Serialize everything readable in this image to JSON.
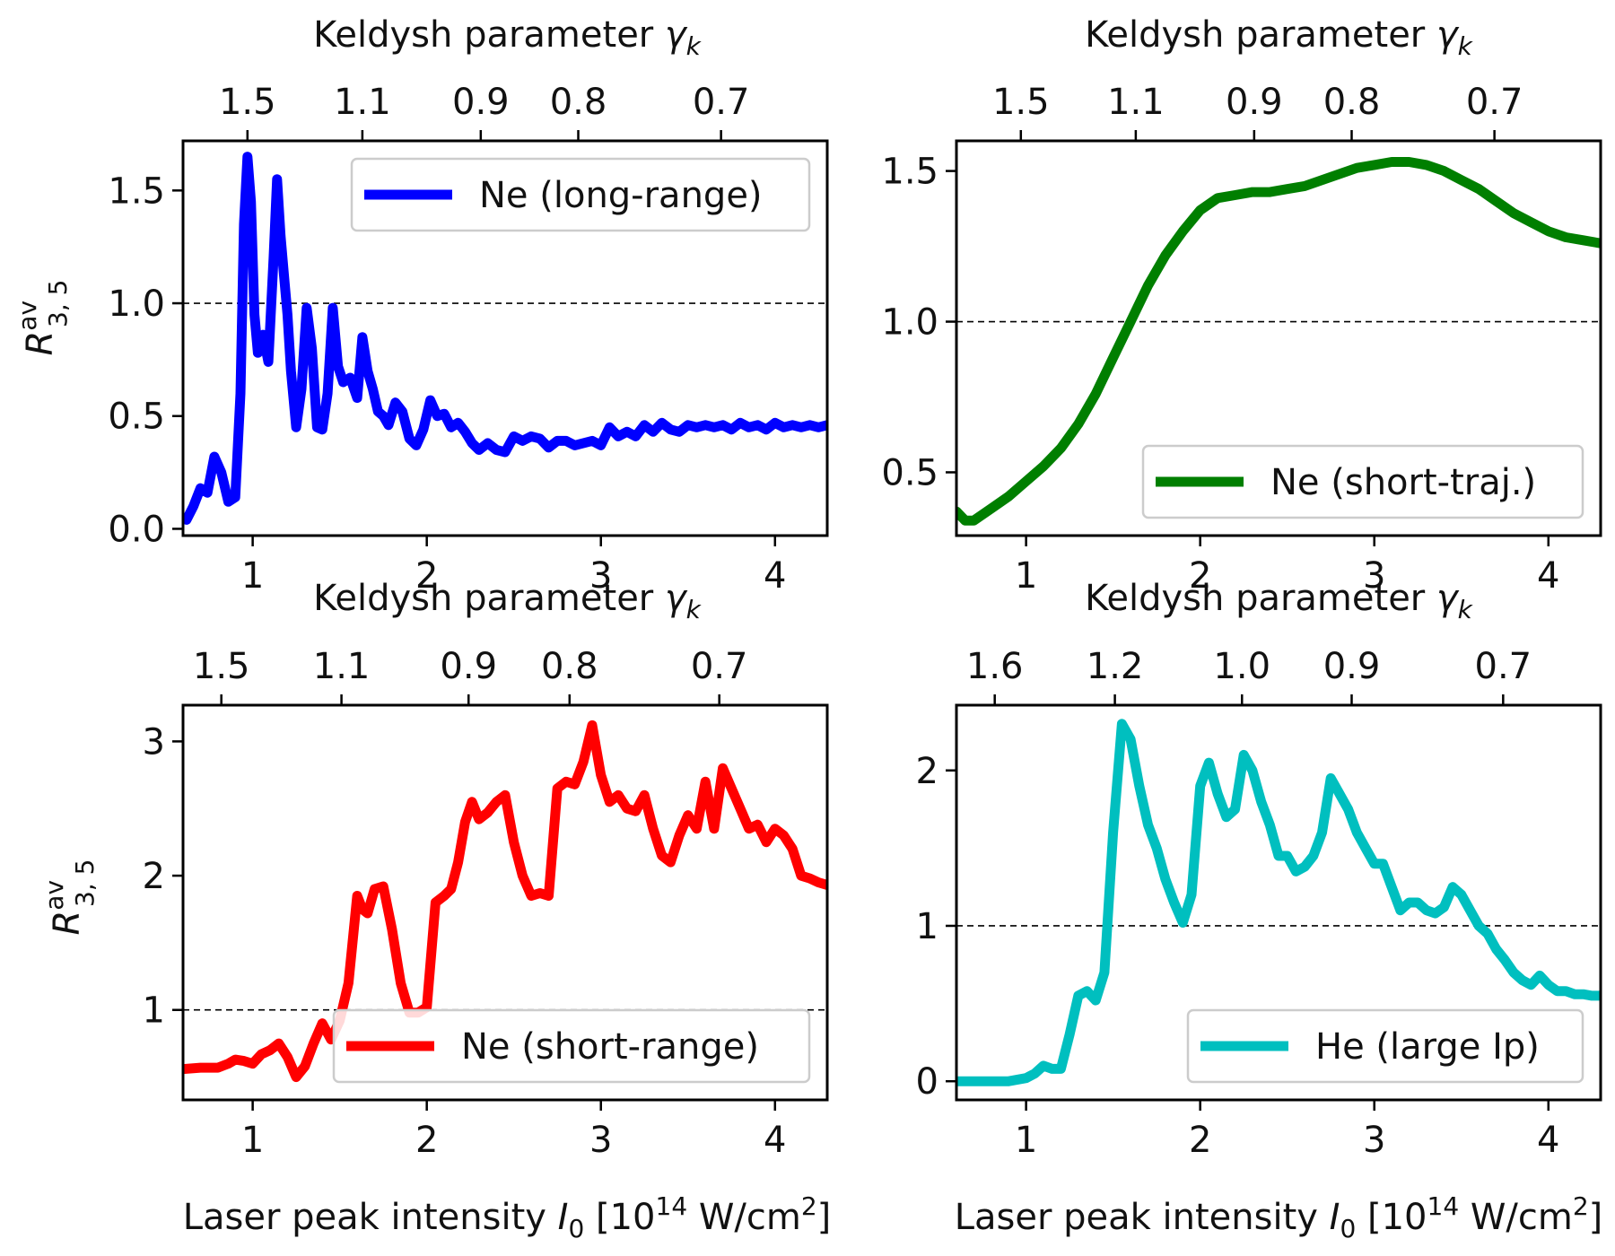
{
  "figure": {
    "common_xlabel": "Laser peak intensity",
    "common_xlabel_symbol": "I",
    "common_xlabel_symbol_sub": "0",
    "common_xlabel_unit_open": " [10",
    "common_xlabel_unit_exp": "14",
    "common_xlabel_unit_mid": " W/cm",
    "common_xlabel_unit_exp2": "2",
    "common_xlabel_unit_close": "]",
    "top_xlabel": "Keldysh parameter",
    "top_xlabel_symbol": "γ",
    "top_xlabel_symbol_sub": "k",
    "ylabel_symbol": "R",
    "ylabel_sup": "av",
    "ylabel_sub": "3, 5"
  },
  "chart_data": [
    {
      "type": "line",
      "panel": "top-left",
      "title": "",
      "xlabel": "Laser peak intensity I0 [10^14 W/cm^2]",
      "ylabel": "R^av_3,5",
      "top_xlabel": "Keldysh parameter γk",
      "xlim": [
        0.6,
        4.3
      ],
      "ylim": [
        -0.03,
        1.72
      ],
      "xticks": [
        1,
        2,
        3,
        4
      ],
      "xtick_labels": [
        "1",
        "2",
        "3",
        "4"
      ],
      "yticks": [
        0.0,
        0.5,
        1.0,
        1.5
      ],
      "ytick_labels": [
        "0.0",
        "0.5",
        "1.0",
        "1.5"
      ],
      "top_ticks": [
        0.97,
        1.63,
        2.31,
        2.87,
        3.69
      ],
      "top_tick_labels": [
        "1.5",
        "1.1",
        "0.9",
        "0.8",
        "0.7"
      ],
      "reference_line": 1.0,
      "legend_position": "upper-right",
      "series": [
        {
          "name": "Ne (long-range)",
          "color": "#0000ff",
          "x": [
            0.62,
            0.66,
            0.7,
            0.74,
            0.78,
            0.82,
            0.86,
            0.9,
            0.93,
            0.95,
            0.97,
            0.99,
            1.01,
            1.03,
            1.06,
            1.09,
            1.12,
            1.14,
            1.16,
            1.18,
            1.2,
            1.22,
            1.25,
            1.28,
            1.31,
            1.34,
            1.37,
            1.4,
            1.43,
            1.46,
            1.49,
            1.52,
            1.56,
            1.6,
            1.63,
            1.66,
            1.69,
            1.72,
            1.75,
            1.78,
            1.82,
            1.86,
            1.9,
            1.94,
            1.98,
            2.02,
            2.06,
            2.1,
            2.14,
            2.18,
            2.22,
            2.26,
            2.3,
            2.35,
            2.4,
            2.45,
            2.5,
            2.55,
            2.6,
            2.65,
            2.7,
            2.75,
            2.8,
            2.85,
            2.9,
            2.95,
            3.0,
            3.05,
            3.1,
            3.15,
            3.2,
            3.25,
            3.3,
            3.35,
            3.4,
            3.45,
            3.5,
            3.55,
            3.6,
            3.65,
            3.7,
            3.75,
            3.8,
            3.85,
            3.9,
            3.95,
            4.0,
            4.05,
            4.1,
            4.15,
            4.2,
            4.25,
            4.3
          ],
          "y": [
            0.04,
            0.1,
            0.18,
            0.16,
            0.32,
            0.25,
            0.12,
            0.14,
            0.6,
            1.35,
            1.65,
            1.45,
            0.95,
            0.78,
            0.86,
            0.74,
            1.2,
            1.55,
            1.3,
            1.12,
            0.95,
            0.7,
            0.45,
            0.62,
            0.98,
            0.8,
            0.45,
            0.44,
            0.6,
            0.98,
            0.72,
            0.65,
            0.67,
            0.58,
            0.85,
            0.7,
            0.62,
            0.52,
            0.5,
            0.46,
            0.56,
            0.52,
            0.4,
            0.37,
            0.44,
            0.57,
            0.5,
            0.51,
            0.45,
            0.47,
            0.43,
            0.38,
            0.35,
            0.38,
            0.35,
            0.34,
            0.41,
            0.39,
            0.41,
            0.4,
            0.36,
            0.39,
            0.39,
            0.37,
            0.38,
            0.39,
            0.37,
            0.45,
            0.41,
            0.43,
            0.41,
            0.46,
            0.43,
            0.47,
            0.44,
            0.43,
            0.46,
            0.45,
            0.46,
            0.45,
            0.46,
            0.44,
            0.47,
            0.45,
            0.46,
            0.44,
            0.47,
            0.45,
            0.46,
            0.45,
            0.46,
            0.45,
            0.46
          ]
        }
      ]
    },
    {
      "type": "line",
      "panel": "top-right",
      "title": "",
      "xlabel": "Laser peak intensity I0 [10^14 W/cm^2]",
      "ylabel": "",
      "top_xlabel": "Keldysh parameter γk",
      "xlim": [
        0.6,
        4.3
      ],
      "ylim": [
        0.29,
        1.6
      ],
      "xticks": [
        1,
        2,
        3,
        4
      ],
      "xtick_labels": [
        "1",
        "2",
        "3",
        "4"
      ],
      "yticks": [
        0.5,
        1.0,
        1.5
      ],
      "ytick_labels": [
        "0.5",
        "1.0",
        "1.5"
      ],
      "top_ticks": [
        0.97,
        1.63,
        2.31,
        2.87,
        3.69
      ],
      "top_tick_labels": [
        "1.5",
        "1.1",
        "0.9",
        "0.8",
        "0.7"
      ],
      "reference_line": 1.0,
      "legend_position": "lower-right",
      "series": [
        {
          "name": "Ne (short-traj.)",
          "color": "#007f00",
          "x": [
            0.6,
            0.65,
            0.7,
            0.8,
            0.9,
            1.0,
            1.1,
            1.2,
            1.3,
            1.4,
            1.5,
            1.6,
            1.7,
            1.8,
            1.9,
            2.0,
            2.1,
            2.2,
            2.3,
            2.4,
            2.5,
            2.6,
            2.7,
            2.8,
            2.9,
            3.0,
            3.1,
            3.2,
            3.3,
            3.4,
            3.5,
            3.6,
            3.7,
            3.8,
            3.9,
            4.0,
            4.1,
            4.2,
            4.3
          ],
          "y": [
            0.37,
            0.34,
            0.34,
            0.38,
            0.42,
            0.47,
            0.52,
            0.58,
            0.66,
            0.76,
            0.88,
            1.0,
            1.12,
            1.22,
            1.3,
            1.37,
            1.41,
            1.42,
            1.43,
            1.43,
            1.44,
            1.45,
            1.47,
            1.49,
            1.51,
            1.52,
            1.53,
            1.53,
            1.52,
            1.5,
            1.47,
            1.44,
            1.4,
            1.36,
            1.33,
            1.3,
            1.28,
            1.27,
            1.26
          ]
        }
      ]
    },
    {
      "type": "line",
      "panel": "bottom-left",
      "title": "",
      "xlabel": "Laser peak intensity I0 [10^14 W/cm^2]",
      "ylabel": "R^av_3,5",
      "top_xlabel": "Keldysh parameter γk",
      "xlim": [
        0.6,
        4.3
      ],
      "ylim": [
        0.33,
        3.27
      ],
      "xticks": [
        1,
        2,
        3,
        4
      ],
      "xtick_labels": [
        "1",
        "2",
        "3",
        "4"
      ],
      "yticks": [
        1,
        2,
        3
      ],
      "ytick_labels": [
        "1",
        "2",
        "3"
      ],
      "top_ticks": [
        0.82,
        1.51,
        2.24,
        2.82,
        3.68
      ],
      "top_tick_labels": [
        "1.5",
        "1.1",
        "0.9",
        "0.8",
        "0.7"
      ],
      "reference_line": 1.0,
      "legend_position": "lower-right",
      "series": [
        {
          "name": "Ne (short-range)",
          "color": "#ff0000",
          "x": [
            0.6,
            0.7,
            0.8,
            0.86,
            0.9,
            0.95,
            1.0,
            1.05,
            1.1,
            1.15,
            1.2,
            1.25,
            1.3,
            1.35,
            1.4,
            1.45,
            1.5,
            1.55,
            1.6,
            1.63,
            1.66,
            1.7,
            1.75,
            1.8,
            1.85,
            1.9,
            1.95,
            2.0,
            2.05,
            2.1,
            2.14,
            2.18,
            2.22,
            2.26,
            2.3,
            2.35,
            2.4,
            2.45,
            2.5,
            2.55,
            2.6,
            2.65,
            2.7,
            2.75,
            2.8,
            2.85,
            2.9,
            2.95,
            3.0,
            3.05,
            3.1,
            3.15,
            3.2,
            3.25,
            3.3,
            3.35,
            3.4,
            3.45,
            3.5,
            3.55,
            3.6,
            3.65,
            3.7,
            3.75,
            3.8,
            3.85,
            3.9,
            3.95,
            4.0,
            4.05,
            4.1,
            4.15,
            4.2,
            4.25,
            4.3
          ],
          "y": [
            0.56,
            0.57,
            0.57,
            0.6,
            0.63,
            0.62,
            0.6,
            0.67,
            0.7,
            0.75,
            0.65,
            0.5,
            0.58,
            0.75,
            0.9,
            0.78,
            0.92,
            1.2,
            1.85,
            1.75,
            1.72,
            1.9,
            1.92,
            1.6,
            1.2,
            0.98,
            0.98,
            1.02,
            1.8,
            1.85,
            1.9,
            2.1,
            2.4,
            2.55,
            2.42,
            2.47,
            2.55,
            2.6,
            2.25,
            2.0,
            1.85,
            1.87,
            1.85,
            2.65,
            2.7,
            2.68,
            2.85,
            3.12,
            2.75,
            2.55,
            2.6,
            2.5,
            2.48,
            2.6,
            2.35,
            2.15,
            2.1,
            2.3,
            2.45,
            2.35,
            2.7,
            2.35,
            2.8,
            2.65,
            2.5,
            2.35,
            2.38,
            2.25,
            2.35,
            2.3,
            2.2,
            2.0,
            1.98,
            1.95,
            1.93
          ]
        }
      ]
    },
    {
      "type": "line",
      "panel": "bottom-right",
      "title": "",
      "xlabel": "Laser peak intensity I0 [10^14 W/cm^2]",
      "ylabel": "",
      "top_xlabel": "Keldysh parameter γk",
      "xlim": [
        0.6,
        4.3
      ],
      "ylim": [
        -0.12,
        2.42
      ],
      "xticks": [
        1,
        2,
        3,
        4
      ],
      "xtick_labels": [
        "1",
        "2",
        "3",
        "4"
      ],
      "yticks": [
        0,
        1,
        2
      ],
      "ytick_labels": [
        "0",
        "1",
        "2"
      ],
      "top_ticks": [
        0.82,
        1.51,
        2.24,
        2.87,
        3.74
      ],
      "top_tick_labels": [
        "1.6",
        "1.2",
        "1.0",
        "0.9",
        "0.7"
      ],
      "reference_line": 1.0,
      "legend_position": "lower-right",
      "series": [
        {
          "name": "He (large Ip)",
          "color": "#00bfbf",
          "x": [
            0.6,
            0.7,
            0.8,
            0.9,
            1.0,
            1.05,
            1.1,
            1.15,
            1.2,
            1.25,
            1.3,
            1.35,
            1.4,
            1.45,
            1.5,
            1.55,
            1.6,
            1.65,
            1.7,
            1.75,
            1.8,
            1.85,
            1.9,
            1.95,
            2.0,
            2.05,
            2.1,
            2.15,
            2.2,
            2.25,
            2.3,
            2.35,
            2.4,
            2.45,
            2.5,
            2.55,
            2.6,
            2.65,
            2.7,
            2.75,
            2.8,
            2.85,
            2.9,
            2.95,
            3.0,
            3.05,
            3.1,
            3.15,
            3.2,
            3.25,
            3.3,
            3.35,
            3.4,
            3.45,
            3.5,
            3.55,
            3.6,
            3.65,
            3.7,
            3.75,
            3.8,
            3.85,
            3.9,
            3.95,
            4.0,
            4.05,
            4.1,
            4.15,
            4.2,
            4.25,
            4.3
          ],
          "y": [
            0.0,
            0.0,
            0.0,
            0.0,
            0.02,
            0.05,
            0.1,
            0.08,
            0.08,
            0.3,
            0.55,
            0.58,
            0.52,
            0.7,
            1.6,
            2.3,
            2.2,
            1.9,
            1.65,
            1.5,
            1.3,
            1.15,
            1.02,
            1.2,
            1.9,
            2.05,
            1.85,
            1.7,
            1.75,
            2.1,
            2.0,
            1.8,
            1.65,
            1.45,
            1.45,
            1.35,
            1.38,
            1.45,
            1.6,
            1.95,
            1.85,
            1.75,
            1.6,
            1.5,
            1.4,
            1.4,
            1.25,
            1.1,
            1.15,
            1.15,
            1.1,
            1.08,
            1.12,
            1.25,
            1.2,
            1.1,
            1.0,
            0.95,
            0.85,
            0.78,
            0.7,
            0.65,
            0.62,
            0.68,
            0.62,
            0.58,
            0.58,
            0.56,
            0.56,
            0.55,
            0.55
          ]
        }
      ]
    }
  ]
}
